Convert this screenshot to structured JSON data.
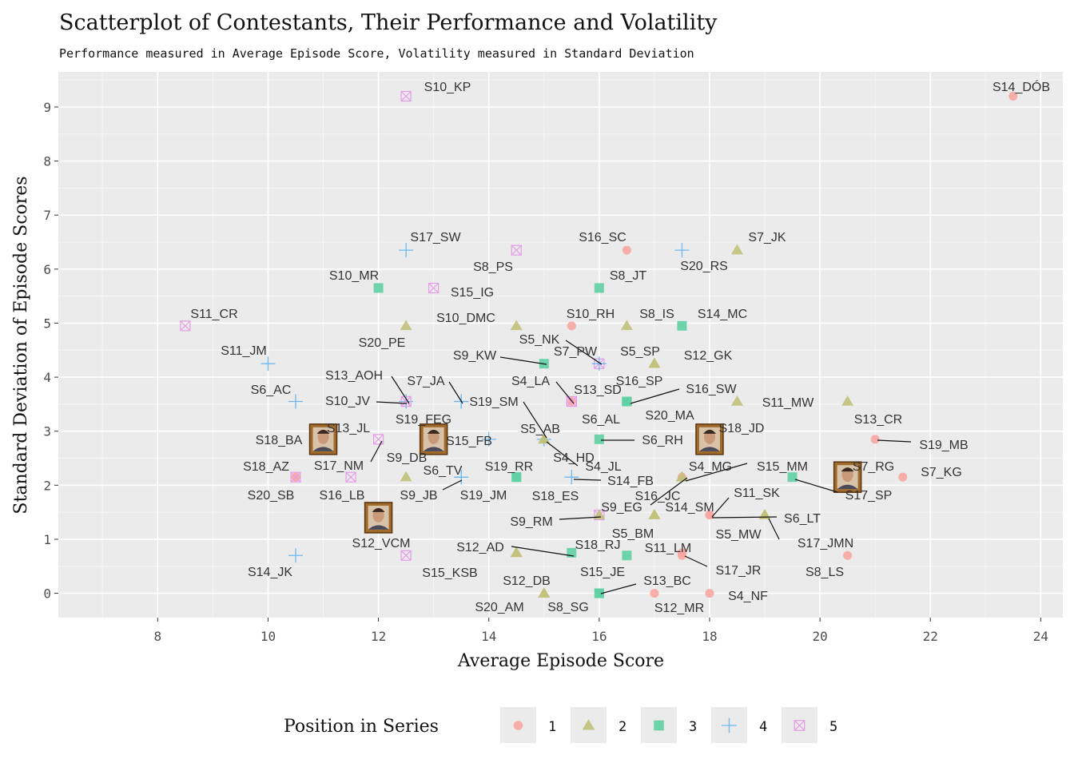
{
  "chart_data": {
    "type": "scatter",
    "title": "Scatterplot of Contestants, Their Performance and Volatility",
    "subtitle": "Performance measured in Average Episode Score, Volatility measured in Standard Deviation",
    "xlabel": "Average Episode Score",
    "ylabel": "Standard Deviation of Episode Scores",
    "xlim": [
      6.2,
      24.4
    ],
    "ylim": [
      -0.45,
      9.65
    ],
    "x_ticks": [
      8,
      10,
      12,
      14,
      16,
      18,
      20,
      22,
      24
    ],
    "y_ticks": [
      0,
      1,
      2,
      3,
      4,
      5,
      6,
      7,
      8,
      9
    ],
    "grid": true,
    "legend": {
      "title": "Position in Series",
      "placement": "bottom",
      "entries": [
        {
          "label": "1",
          "group": 1
        },
        {
          "label": "2",
          "group": 2
        },
        {
          "label": "3",
          "group": 3
        },
        {
          "label": "4",
          "group": 4
        },
        {
          "label": "5",
          "group": 5
        }
      ]
    },
    "group_colors": {
      "1": "#f8a6a1",
      "2": "#c1c17a",
      "3": "#60d0a4",
      "4": "#6db9f0",
      "5": "#e49ce8"
    },
    "points": [
      {
        "label": "S14_DÓB",
        "x": 23.5,
        "y": 9.2,
        "group": 1
      },
      {
        "label": "S10_KP",
        "x": 12.5,
        "y": 9.2,
        "group": 5
      },
      {
        "label": "S17_SW",
        "x": 12.5,
        "y": 6.35,
        "group": 4
      },
      {
        "label": "S16_SC",
        "x": 16.5,
        "y": 6.35,
        "group": 1
      },
      {
        "label": "S7_JK",
        "x": 18.5,
        "y": 6.35,
        "group": 2
      },
      {
        "label": "S8_PS",
        "x": 14.5,
        "y": 6.35,
        "group": 5
      },
      {
        "label": "S20_RS",
        "x": 17.5,
        "y": 6.35,
        "group": 4
      },
      {
        "label": "S10_MR",
        "x": 12.0,
        "y": 5.65,
        "group": 3
      },
      {
        "label": "S8_JT",
        "x": 16.0,
        "y": 5.65,
        "group": 3
      },
      {
        "label": "S15_IG",
        "x": 13.0,
        "y": 5.65,
        "group": 5
      },
      {
        "label": "S11_CR",
        "x": 8.5,
        "y": 4.95,
        "group": 5
      },
      {
        "label": "S10_DMC",
        "x": 14.5,
        "y": 4.95,
        "group": 2
      },
      {
        "label": "S10_RH",
        "x": 15.5,
        "y": 4.95,
        "group": 1
      },
      {
        "label": "S8_IS",
        "x": 16.5,
        "y": 4.95,
        "group": 2
      },
      {
        "label": "S14_MC",
        "x": 17.5,
        "y": 4.95,
        "group": 3
      },
      {
        "label": "S20_PE",
        "x": 12.5,
        "y": 4.95,
        "group": 2
      },
      {
        "label": "S11_JM",
        "x": 10.0,
        "y": 4.25,
        "group": 4
      },
      {
        "label": "S9_KW",
        "x": 15.0,
        "y": 4.25,
        "group": 3
      },
      {
        "label": "S5_NK",
        "x": 16.0,
        "y": 4.25,
        "group": 5
      },
      {
        "label": "S7_PW",
        "x": 16.0,
        "y": 4.25,
        "group": 4
      },
      {
        "label": "S5_SP",
        "x": 17.0,
        "y": 4.25,
        "group": 2
      },
      {
        "label": "S12_GK",
        "x": 17.0,
        "y": 4.25,
        "group": 2
      },
      {
        "label": "S13_AOH",
        "x": 12.5,
        "y": 3.55,
        "group": 4
      },
      {
        "label": "S7_JA",
        "x": 13.5,
        "y": 3.55,
        "group": 4
      },
      {
        "label": "S6_AC",
        "x": 10.5,
        "y": 3.55,
        "group": 4
      },
      {
        "label": "S10_JV",
        "x": 12.5,
        "y": 3.55,
        "group": 5
      },
      {
        "label": "S19_SM",
        "x": 13.5,
        "y": 3.55,
        "group": 4
      },
      {
        "label": "S4_LA",
        "x": 15.5,
        "y": 3.55,
        "group": 1
      },
      {
        "label": "S13_SD",
        "x": 15.5,
        "y": 3.55,
        "group": 5
      },
      {
        "label": "S16_SP",
        "x": 16.5,
        "y": 3.55,
        "group": 3
      },
      {
        "label": "S16_SW",
        "x": 16.5,
        "y": 3.55,
        "group": 3
      },
      {
        "label": "S11_MW",
        "x": 18.5,
        "y": 3.55,
        "group": 2
      },
      {
        "label": "S13_CR",
        "x": 20.5,
        "y": 3.55,
        "group": 2
      },
      {
        "label": "S19_FEG",
        "x": 12.5,
        "y": 3.55,
        "group": 5
      },
      {
        "label": "S6_AL",
        "x": 15.5,
        "y": 3.55,
        "group": 5
      },
      {
        "label": "S20_MA",
        "x": 16.5,
        "y": 3.55,
        "group": 3
      },
      {
        "label": "S13_JL",
        "x": 11.0,
        "y": 2.85,
        "group": 1
      },
      {
        "label": "S18_BA",
        "x": 11.0,
        "y": 2.85,
        "group": 1
      },
      {
        "label": "S15_FB",
        "x": 14.0,
        "y": 2.85,
        "group": 4
      },
      {
        "label": "S5_AB",
        "x": 15.0,
        "y": 2.85,
        "group": 2
      },
      {
        "label": "S6_RH",
        "x": 16.0,
        "y": 2.85,
        "group": 3
      },
      {
        "label": "S18_JD",
        "x": 18.0,
        "y": 2.85,
        "group": 3
      },
      {
        "label": "S19_MB",
        "x": 21.0,
        "y": 2.85,
        "group": 1
      },
      {
        "label": "S17_NM",
        "x": 12.0,
        "y": 2.85,
        "group": 5
      },
      {
        "label": "S9_DB",
        "x": 13.0,
        "y": 2.85,
        "group": 1
      },
      {
        "label": "S4_HD",
        "x": 15.0,
        "y": 2.85,
        "group": 4
      },
      {
        "label": "S18_AZ",
        "x": 10.5,
        "y": 2.15,
        "group": 1
      },
      {
        "label": "S6_TV",
        "x": 12.5,
        "y": 2.15,
        "group": 2
      },
      {
        "label": "S19_RR",
        "x": 14.5,
        "y": 2.15,
        "group": 3
      },
      {
        "label": "S4_JL",
        "x": 15.0,
        "y": 2.85,
        "group": 2
      },
      {
        "label": "S4_MG",
        "x": 17.5,
        "y": 2.15,
        "group": 2
      },
      {
        "label": "S15_MM",
        "x": 17.5,
        "y": 2.15,
        "group": 1
      },
      {
        "label": "S7_RG",
        "x": 20.5,
        "y": 2.15,
        "group": 3
      },
      {
        "label": "S7_KG",
        "x": 21.5,
        "y": 2.15,
        "group": 1
      },
      {
        "label": "S20_SB",
        "x": 10.5,
        "y": 2.15,
        "group": 5
      },
      {
        "label": "S16_LB",
        "x": 11.5,
        "y": 2.15,
        "group": 5
      },
      {
        "label": "S9_JB",
        "x": 13.5,
        "y": 2.15,
        "group": 4
      },
      {
        "label": "S19_JM",
        "x": 13.5,
        "y": 2.15,
        "group": 4
      },
      {
        "label": "S18_ES",
        "x": 14.5,
        "y": 2.15,
        "group": 3
      },
      {
        "label": "S14_FB",
        "x": 15.5,
        "y": 2.15,
        "group": 4
      },
      {
        "label": "S16_JC",
        "x": 17.5,
        "y": 2.15,
        "group": 2
      },
      {
        "label": "S17_SP",
        "x": 19.5,
        "y": 2.15,
        "group": 3
      },
      {
        "label": "S11_SK",
        "x": 18.0,
        "y": 1.45,
        "group": 1
      },
      {
        "label": "S9_EG",
        "x": 17.0,
        "y": 1.45,
        "group": 2
      },
      {
        "label": "S14_SM",
        "x": 17.0,
        "y": 1.45,
        "group": 2
      },
      {
        "label": "S6_LT",
        "x": 19.0,
        "y": 1.45,
        "group": 2
      },
      {
        "label": "S9_RM",
        "x": 16.0,
        "y": 1.45,
        "group": 5
      },
      {
        "label": "S5_BM",
        "x": 16.0,
        "y": 1.45,
        "group": 2
      },
      {
        "label": "S5_MW",
        "x": 18.0,
        "y": 1.45,
        "group": 1
      },
      {
        "label": "S17_JMN",
        "x": 19.0,
        "y": 1.45,
        "group": 2
      },
      {
        "label": "S12_VCM",
        "x": 12.0,
        "y": 1.45,
        "group": 1
      },
      {
        "label": "S12_AD",
        "x": 14.5,
        "y": 0.75,
        "group": 2
      },
      {
        "label": "S18_RJ",
        "x": 15.5,
        "y": 0.75,
        "group": 3
      },
      {
        "label": "S11_LM",
        "x": 17.5,
        "y": 0.75,
        "group": 1
      },
      {
        "label": "S14_JK",
        "x": 10.5,
        "y": 0.7,
        "group": 4
      },
      {
        "label": "S15_KSB",
        "x": 14.5,
        "y": 0.75,
        "group": 2
      },
      {
        "label": "S15_JE",
        "x": 16.5,
        "y": 0.7,
        "group": 3
      },
      {
        "label": "S17_JR",
        "x": 17.5,
        "y": 0.7,
        "group": 1
      },
      {
        "label": "S8_LS",
        "x": 20.5,
        "y": 0.7,
        "group": 1
      },
      {
        "label": "S12_DB",
        "x": 16.0,
        "y": 0.0,
        "group": 3
      },
      {
        "label": "S13_BC",
        "x": 16.0,
        "y": 0.0,
        "group": 3
      },
      {
        "label": "S20_AM",
        "x": 15.0,
        "y": 0.0,
        "group": 2
      },
      {
        "label": "S8_SG",
        "x": 15.0,
        "y": 0.0,
        "group": 2
      },
      {
        "label": "S12_MR",
        "x": 17.0,
        "y": 0.0,
        "group": 1
      },
      {
        "label": "S4_NF",
        "x": 18.0,
        "y": 0.0,
        "group": 1
      },
      {
        "label": "",
        "x": 12.5,
        "y": 0.7,
        "group": 5
      },
      {
        "label": "",
        "x": 18.0,
        "y": 2.85,
        "group": 3
      },
      {
        "label": "",
        "x": 20.5,
        "y": 2.15,
        "group": 3
      }
    ],
    "photos": [
      {
        "x": 11.0,
        "y": 2.85
      },
      {
        "x": 13.0,
        "y": 2.85
      },
      {
        "x": 12.0,
        "y": 1.4
      },
      {
        "x": 18.0,
        "y": 2.85
      },
      {
        "x": 20.5,
        "y": 2.15
      }
    ]
  }
}
